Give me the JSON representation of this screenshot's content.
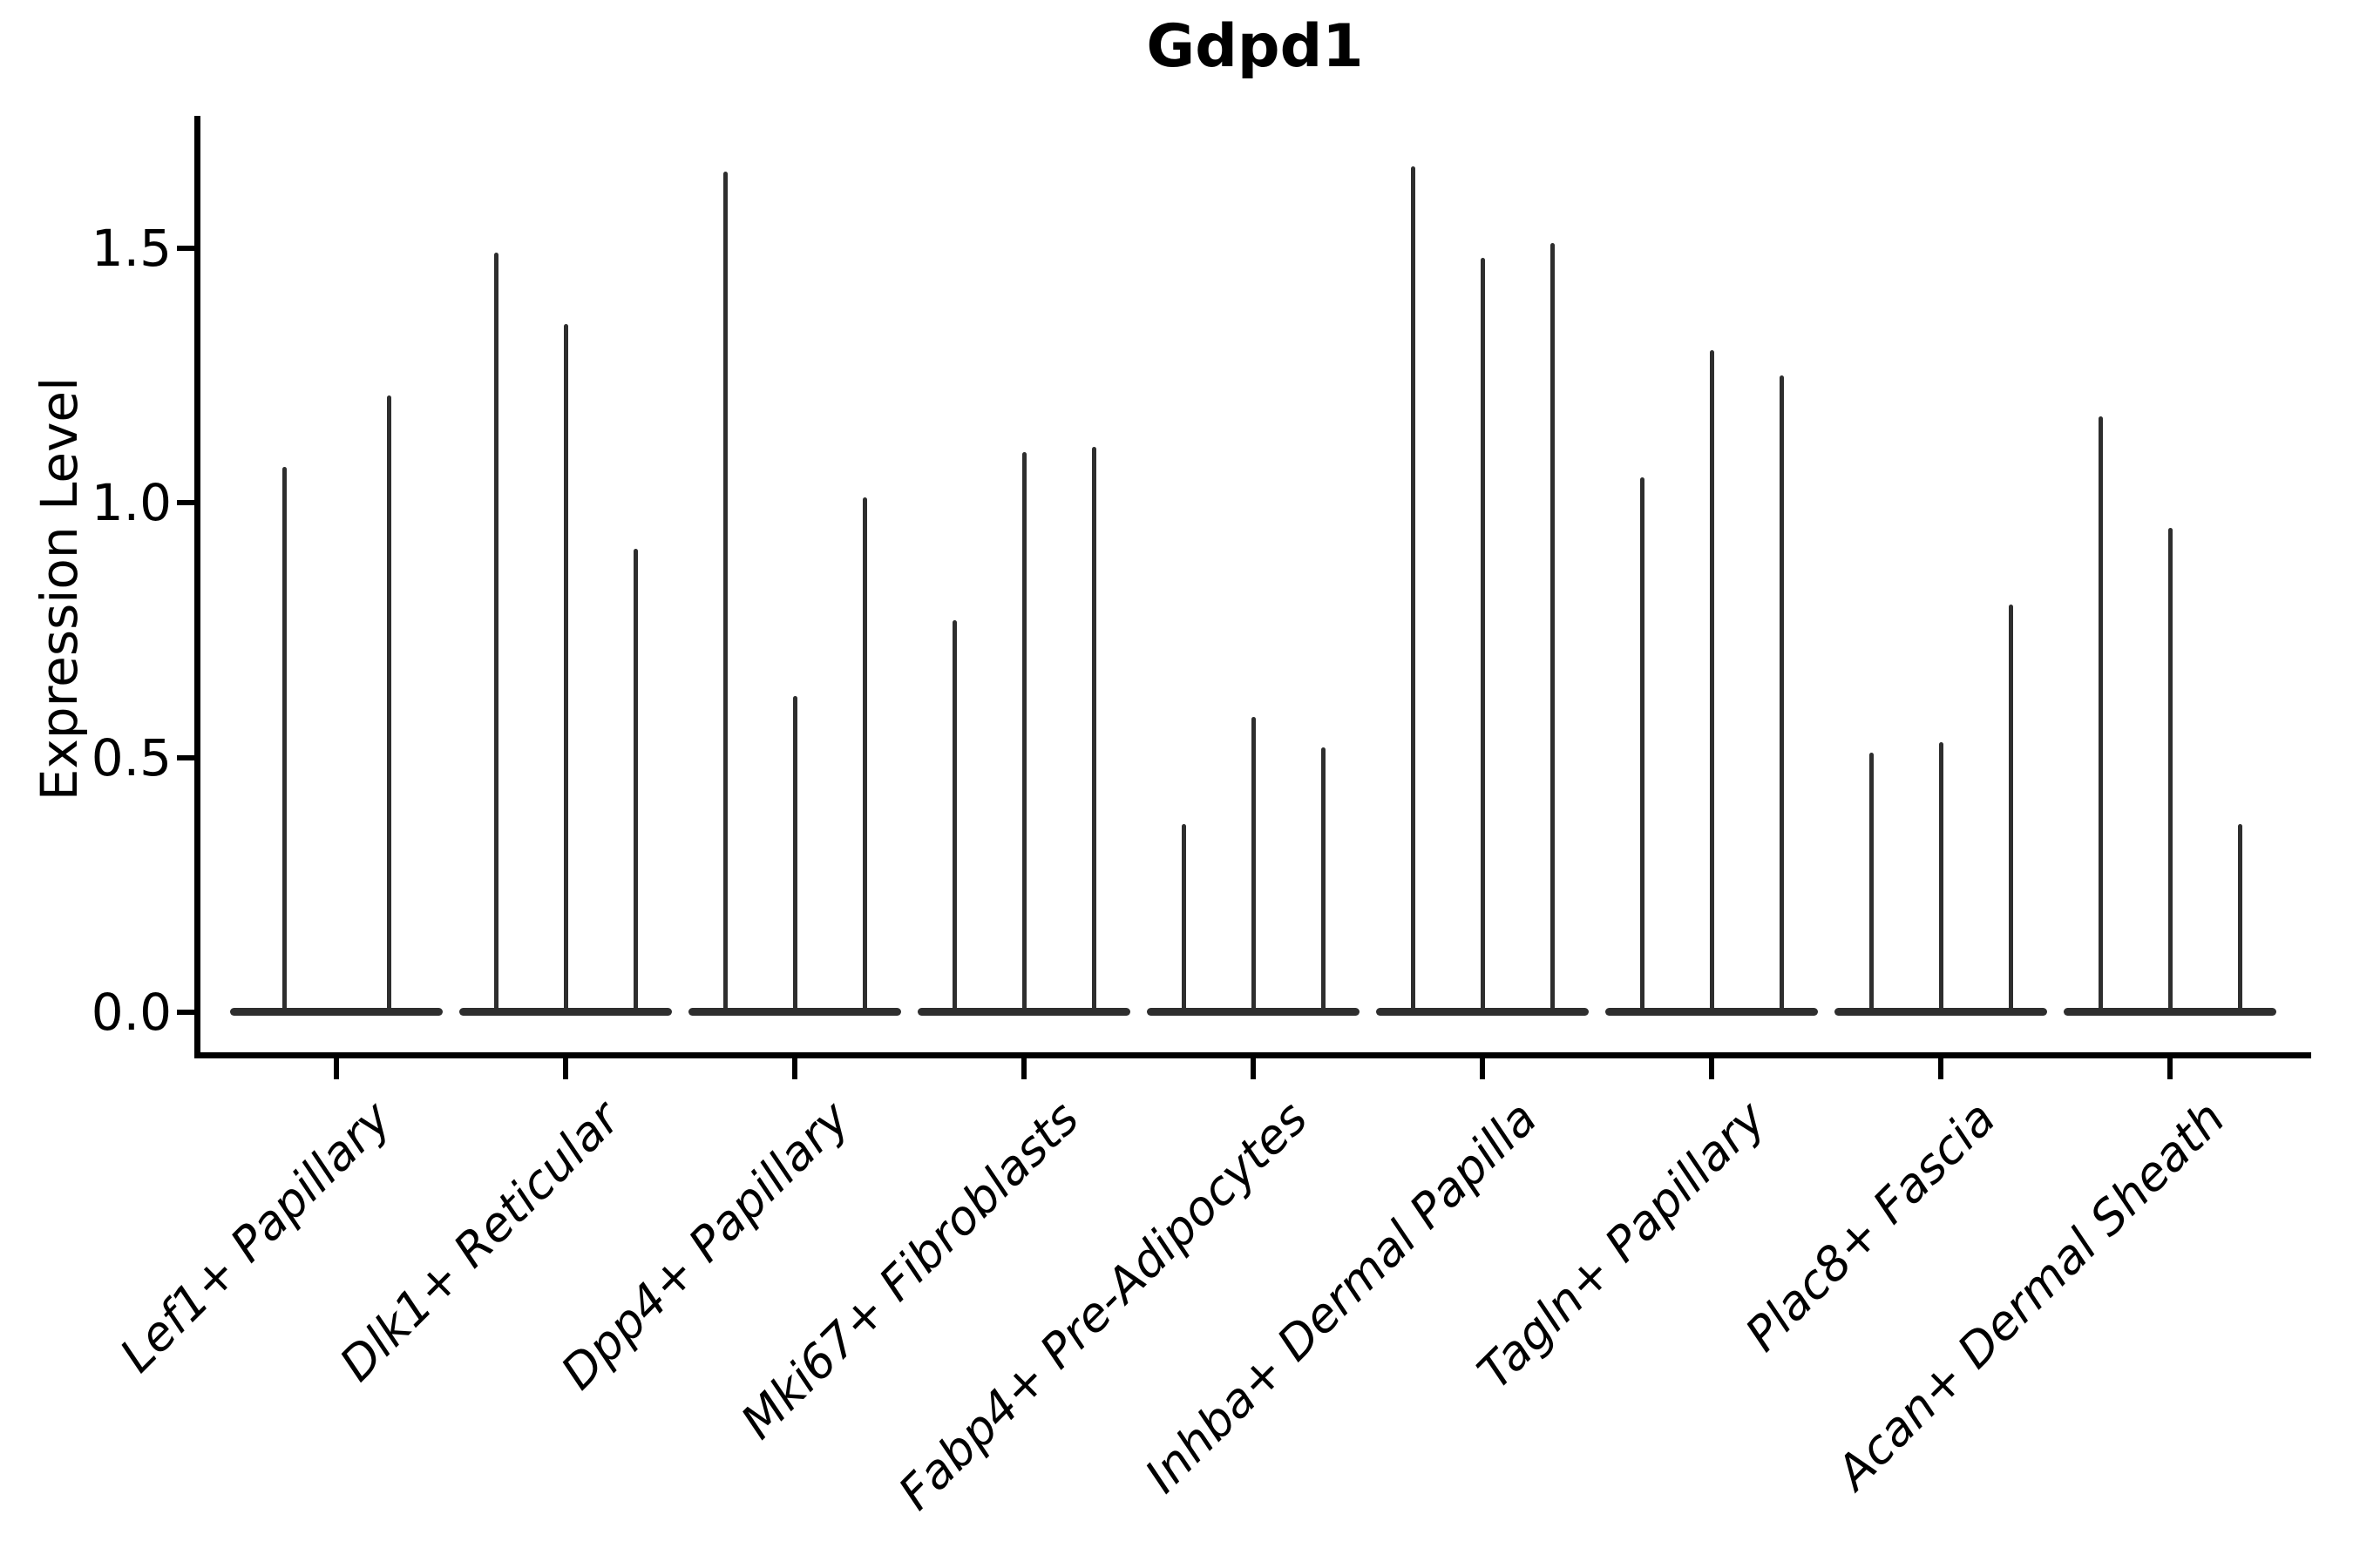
{
  "chart_data": {
    "type": "violin",
    "title": "Gdpd1",
    "xlabel": "",
    "ylabel": "Expression Level",
    "grid": false,
    "legend": "none",
    "background_color": "#ffffff",
    "axis_color": "#000000",
    "violin_color": "#2e2e2e",
    "ylim": [
      0,
      1.76
    ],
    "ytick_values": [
      0.0,
      0.5,
      1.0,
      1.5
    ],
    "ytick_labels": [
      "0.0",
      "0.5",
      "1.0",
      "1.5"
    ],
    "categories": [
      "Lef1+ Papillary",
      "Dlk1+ Reticular",
      "Dpp4+ Papillary",
      "Mki67+ Fibroblasts",
      "Fabp4+ Pre-Adipocytes",
      "Inhba+ Dermal Papilla",
      "Tagln+ Papillary",
      "Plac8+ Fascia",
      "Acan+ Dermal Sheath"
    ],
    "series_note": "Each category shows narrow violins (expression spikes); values are the max expression level reached by each violin, left to right.",
    "groups": [
      {
        "category": "Lef1+ Papillary",
        "violin_maxima": [
          1.07,
          1.21
        ]
      },
      {
        "category": "Dlk1+ Reticular",
        "violin_maxima": [
          1.49,
          1.35,
          0.91
        ]
      },
      {
        "category": "Dpp4+ Papillary",
        "violin_maxima": [
          1.65,
          0.62,
          1.01
        ]
      },
      {
        "category": "Mki67+ Fibroblasts",
        "violin_maxima": [
          0.77,
          1.1,
          1.11
        ]
      },
      {
        "category": "Fabp4+ Pre-Adipocytes",
        "violin_maxima": [
          0.37,
          0.58,
          0.52
        ]
      },
      {
        "category": "Inhba+ Dermal Papilla",
        "violin_maxima": [
          1.66,
          1.48,
          1.51
        ]
      },
      {
        "category": "Tagln+ Papillary",
        "violin_maxima": [
          1.05,
          1.3,
          1.25
        ]
      },
      {
        "category": "Plac8+ Fascia",
        "violin_maxima": [
          0.51,
          0.53,
          0.8
        ]
      },
      {
        "category": "Acan+ Dermal Sheath",
        "violin_maxima": [
          1.17,
          0.95,
          0.37
        ]
      }
    ]
  }
}
